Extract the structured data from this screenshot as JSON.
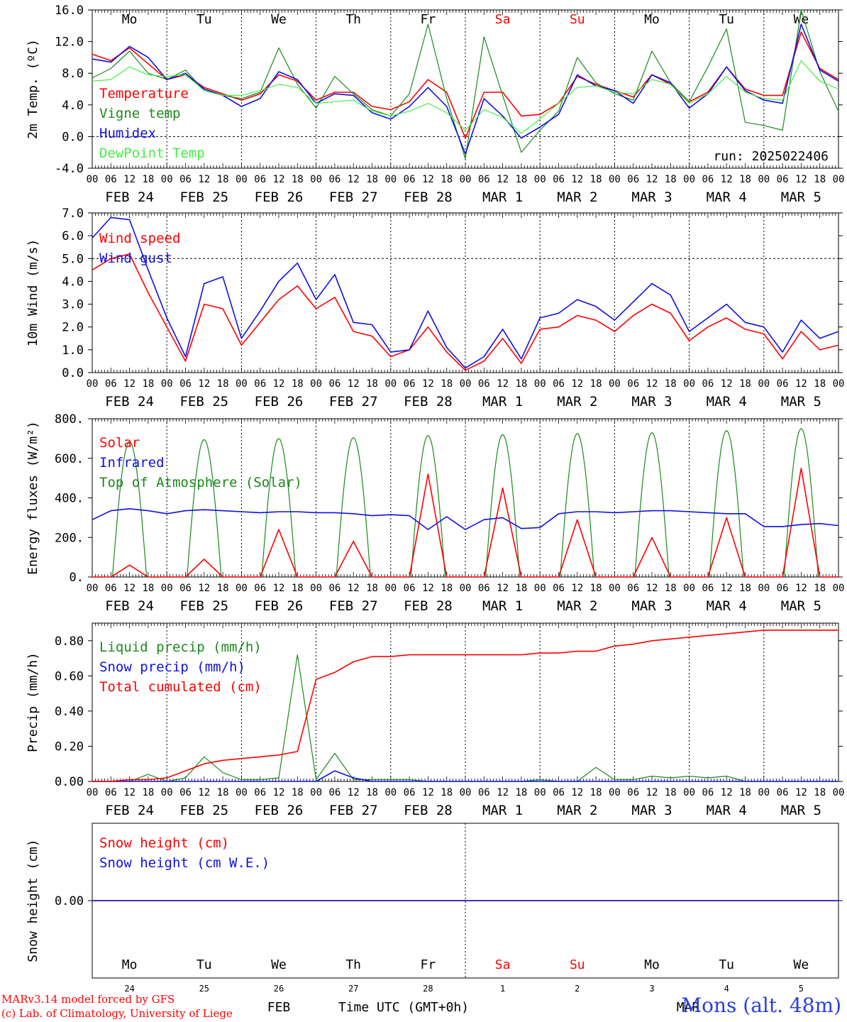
{
  "run_label": "run: 2025022406",
  "footer": {
    "model_line": "MARv3.14 model forced by GFS",
    "lab_line": "(c) Lab. of Climatology, University of Liege",
    "month_feb": "FEB",
    "month_mar": "MAR",
    "time_axis_label": "Time UTC (GMT+0h)",
    "station": "Mons (alt. 48m)"
  },
  "days": [
    {
      "dow": "Mo",
      "date": "FEB 24",
      "num": "24",
      "weekend": false
    },
    {
      "dow": "Tu",
      "date": "FEB 25",
      "num": "25",
      "weekend": false
    },
    {
      "dow": "We",
      "date": "FEB 26",
      "num": "26",
      "weekend": false
    },
    {
      "dow": "Th",
      "date": "FEB 27",
      "num": "27",
      "weekend": false
    },
    {
      "dow": "Fr",
      "date": "FEB 28",
      "num": "28",
      "weekend": false
    },
    {
      "dow": "Sa",
      "date": "MAR  1",
      "num": "1",
      "weekend": true
    },
    {
      "dow": "Su",
      "date": "MAR  2",
      "num": "2",
      "weekend": true
    },
    {
      "dow": "Mo",
      "date": "MAR  3",
      "num": "3",
      "weekend": false
    },
    {
      "dow": "Tu",
      "date": "MAR  4",
      "num": "4",
      "weekend": false
    },
    {
      "dow": "We",
      "date": "MAR  5",
      "num": "5",
      "weekend": false
    }
  ],
  "hour_labels": [
    "00",
    "06",
    "12",
    "18"
  ],
  "colors": {
    "red": "#ff0000",
    "green": "#1a8a1a",
    "blue": "#1010e0",
    "lightgreen": "#44ee44",
    "axis": "#000000",
    "weekend": "#ff0000"
  },
  "chart_data": [
    {
      "type": "line",
      "ylabel": "2m Temp. (ºC)",
      "ylim": [
        -4,
        16
      ],
      "yticks": [
        "-4.0",
        "0.0",
        "4.0",
        "8.0",
        "12.0",
        "16.0"
      ],
      "ytick_values": [
        -4,
        0,
        4,
        8,
        12,
        16
      ],
      "hline": 0,
      "x_hours": [
        0,
        6,
        12,
        18,
        24,
        30,
        36,
        42,
        48,
        54,
        60,
        66,
        72,
        78,
        84,
        90,
        96,
        102,
        108,
        114,
        120,
        126,
        132,
        138,
        144,
        150,
        156,
        162,
        168,
        174,
        180,
        186,
        192,
        198,
        204,
        210,
        216,
        222,
        228,
        234,
        240
      ],
      "series": [
        {
          "name": "Temperature",
          "color": "red",
          "values": [
            10.4,
            9.6,
            11.2,
            9.2,
            7.2,
            7.8,
            6.2,
            5.4,
            4.6,
            5.4,
            7.8,
            7.0,
            4.6,
            5.6,
            5.6,
            3.8,
            3.4,
            4.4,
            7.2,
            5.6,
            -0.2,
            5.6,
            5.6,
            2.6,
            2.8,
            4.2,
            7.6,
            6.6,
            5.8,
            5.0,
            7.8,
            6.6,
            4.4,
            5.6,
            8.8,
            6.0,
            5.2,
            5.2,
            13.2,
            8.6,
            7.2
          ]
        },
        {
          "name": "Vigne temp",
          "color": "green",
          "values": [
            7.4,
            8.6,
            10.8,
            8.0,
            7.2,
            8.4,
            5.8,
            5.2,
            4.8,
            5.6,
            11.2,
            6.6,
            3.6,
            7.6,
            5.4,
            3.4,
            2.6,
            5.4,
            14.2,
            4.8,
            -2.8,
            12.6,
            5.2,
            -2.0,
            0.8,
            3.2,
            10.0,
            6.8,
            5.4,
            4.6,
            10.8,
            6.8,
            4.4,
            8.8,
            13.6,
            1.8,
            1.4,
            0.8,
            16.0,
            8.2,
            3.2
          ]
        },
        {
          "name": "Humidex",
          "color": "blue",
          "values": [
            9.8,
            9.4,
            11.4,
            10.0,
            7.2,
            8.0,
            6.0,
            5.2,
            3.8,
            4.8,
            8.2,
            7.2,
            4.2,
            5.4,
            5.2,
            3.0,
            2.2,
            3.8,
            6.2,
            3.8,
            -2.2,
            4.8,
            2.6,
            -0.2,
            1.2,
            2.8,
            7.8,
            6.4,
            5.8,
            4.2,
            7.8,
            6.8,
            3.6,
            5.4,
            8.8,
            5.8,
            4.6,
            4.2,
            14.2,
            8.4,
            7.0
          ]
        },
        {
          "name": "DewPoint Temp",
          "color": "lightgreen",
          "values": [
            7.0,
            7.2,
            8.8,
            7.8,
            7.6,
            7.8,
            5.8,
            5.2,
            5.2,
            5.8,
            6.6,
            6.2,
            4.2,
            4.4,
            4.6,
            3.2,
            2.6,
            3.2,
            4.2,
            3.0,
            0.8,
            3.4,
            2.4,
            0.4,
            2.2,
            4.2,
            6.2,
            6.4,
            5.6,
            5.4,
            7.2,
            6.6,
            4.2,
            5.4,
            7.6,
            5.6,
            4.8,
            4.6,
            9.6,
            7.0,
            6.0
          ]
        }
      ]
    },
    {
      "type": "line",
      "ylabel": "10m Wind (m/s)",
      "ylim": [
        0,
        7
      ],
      "yticks": [
        "0.0",
        "1.0",
        "2.0",
        "3.0",
        "4.0",
        "5.0",
        "6.0",
        "7.0"
      ],
      "ytick_values": [
        0,
        1,
        2,
        3,
        4,
        5,
        6,
        7
      ],
      "hline": 5,
      "x_hours": [
        0,
        6,
        12,
        18,
        24,
        30,
        36,
        42,
        48,
        54,
        60,
        66,
        72,
        78,
        84,
        90,
        96,
        102,
        108,
        114,
        120,
        126,
        132,
        138,
        144,
        150,
        156,
        162,
        168,
        174,
        180,
        186,
        192,
        198,
        204,
        210,
        216,
        222,
        228,
        234,
        240
      ],
      "series": [
        {
          "name": "Wind speed",
          "color": "red",
          "values": [
            4.5,
            5.0,
            5.2,
            3.5,
            2.0,
            0.5,
            3.0,
            2.8,
            1.2,
            2.2,
            3.2,
            3.8,
            2.8,
            3.3,
            1.8,
            1.6,
            0.7,
            1.0,
            2.0,
            0.9,
            0.1,
            0.5,
            1.5,
            0.4,
            1.9,
            2.0,
            2.5,
            2.3,
            1.8,
            2.5,
            3.0,
            2.6,
            1.4,
            2.0,
            2.4,
            1.9,
            1.7,
            0.6,
            1.8,
            1.0,
            1.2
          ]
        },
        {
          "name": "Wind gust",
          "color": "blue",
          "values": [
            5.9,
            6.8,
            6.7,
            4.5,
            2.4,
            0.7,
            3.9,
            4.2,
            1.5,
            2.7,
            4.0,
            4.8,
            3.2,
            4.3,
            2.2,
            2.1,
            0.9,
            1.0,
            2.7,
            1.1,
            0.2,
            0.7,
            1.9,
            0.6,
            2.4,
            2.6,
            3.2,
            2.9,
            2.3,
            3.1,
            3.9,
            3.4,
            1.8,
            2.4,
            3.0,
            2.2,
            2.0,
            0.9,
            2.3,
            1.5,
            1.8
          ]
        }
      ]
    },
    {
      "type": "line",
      "ylabel": "Energy fluxes (W/m²)",
      "ylim": [
        0,
        800
      ],
      "yticks": [
        "0.",
        "200.",
        "400.",
        "600.",
        "800."
      ],
      "ytick_values": [
        0,
        200,
        400,
        600,
        800
      ],
      "x_hours": [
        0,
        6,
        12,
        18,
        24,
        30,
        36,
        42,
        48,
        54,
        60,
        66,
        72,
        78,
        84,
        90,
        96,
        102,
        108,
        114,
        120,
        126,
        132,
        138,
        144,
        150,
        156,
        162,
        168,
        174,
        180,
        186,
        192,
        198,
        204,
        210,
        216,
        222,
        228,
        234,
        240
      ],
      "series": [
        {
          "name": "Solar",
          "color": "red",
          "values": [
            0,
            0,
            60,
            0,
            0,
            0,
            90,
            0,
            0,
            0,
            240,
            0,
            0,
            0,
            180,
            0,
            0,
            0,
            520,
            0,
            0,
            0,
            450,
            0,
            0,
            0,
            290,
            0,
            0,
            0,
            200,
            0,
            0,
            0,
            300,
            0,
            0,
            0,
            550,
            0,
            0
          ]
        },
        {
          "name": "Infrared",
          "color": "blue",
          "values": [
            290,
            335,
            345,
            335,
            320,
            335,
            340,
            335,
            330,
            325,
            330,
            330,
            325,
            325,
            320,
            310,
            315,
            310,
            240,
            305,
            240,
            290,
            300,
            245,
            250,
            320,
            330,
            330,
            325,
            330,
            335,
            335,
            330,
            325,
            320,
            320,
            255,
            255,
            265,
            270,
            260
          ]
        }
      ],
      "toa": {
        "name": "Top of Atmosphere (Solar)",
        "color": "green",
        "peaks": [
          685,
          695,
          700,
          705,
          715,
          720,
          725,
          730,
          740,
          750
        ],
        "day_start": 6.5,
        "day_end": 17.5
      }
    },
    {
      "type": "line",
      "ylabel": "Precip (mm/h)",
      "ylim": [
        0,
        0.9
      ],
      "yticks": [
        "0.00",
        "0.20",
        "0.40",
        "0.60",
        "0.80"
      ],
      "ytick_values": [
        0,
        0.2,
        0.4,
        0.6,
        0.8
      ],
      "x_hours": [
        0,
        6,
        12,
        18,
        24,
        30,
        36,
        42,
        48,
        54,
        60,
        66,
        72,
        78,
        84,
        90,
        96,
        102,
        108,
        114,
        120,
        126,
        132,
        138,
        144,
        150,
        156,
        162,
        168,
        174,
        180,
        186,
        192,
        198,
        204,
        210,
        216,
        222,
        228,
        234,
        240
      ],
      "series": [
        {
          "name": "Liquid precip (mm/h)",
          "color": "green",
          "values": [
            0,
            0,
            0,
            0.04,
            0,
            0.02,
            0.14,
            0.05,
            0.01,
            0.01,
            0.02,
            0.72,
            0.01,
            0.16,
            0.01,
            0.01,
            0.01,
            0.01,
            0,
            0,
            0,
            0,
            0,
            0,
            0.01,
            0,
            0,
            0.08,
            0.01,
            0.01,
            0.03,
            0.02,
            0.03,
            0.02,
            0.03,
            0,
            0,
            0,
            0,
            0,
            0
          ]
        },
        {
          "name": "Snow precip (mm/h)",
          "color": "blue",
          "values": [
            0,
            0,
            0,
            0,
            0,
            0,
            0,
            0,
            0,
            0,
            0,
            0,
            0,
            0.06,
            0.02,
            0,
            0,
            0,
            0,
            0,
            0,
            0,
            0,
            0,
            0,
            0,
            0,
            0,
            0,
            0,
            0,
            0,
            0,
            0,
            0,
            0,
            0,
            0,
            0,
            0,
            0
          ]
        },
        {
          "name": "Total cumulated (cm)",
          "color": "red",
          "values": [
            0,
            0,
            0.01,
            0.01,
            0.02,
            0.06,
            0.1,
            0.12,
            0.13,
            0.14,
            0.15,
            0.17,
            0.58,
            0.62,
            0.68,
            0.71,
            0.71,
            0.72,
            0.72,
            0.72,
            0.72,
            0.72,
            0.72,
            0.72,
            0.73,
            0.73,
            0.74,
            0.74,
            0.77,
            0.78,
            0.8,
            0.81,
            0.82,
            0.83,
            0.84,
            0.85,
            0.86,
            0.86,
            0.86,
            0.86,
            0.86
          ]
        }
      ]
    },
    {
      "type": "line",
      "ylabel": "Snow height (cm)",
      "ylim": [
        -1,
        1
      ],
      "yticks": [
        "0.00"
      ],
      "ytick_values": [
        0
      ],
      "x_hours": [
        0,
        240
      ],
      "series": [
        {
          "name": "Snow height (cm)",
          "color": "red",
          "values": [
            0,
            0
          ]
        },
        {
          "name": "Snow height (cm W.E.)",
          "color": "blue",
          "values": [
            0,
            0
          ]
        }
      ]
    }
  ]
}
